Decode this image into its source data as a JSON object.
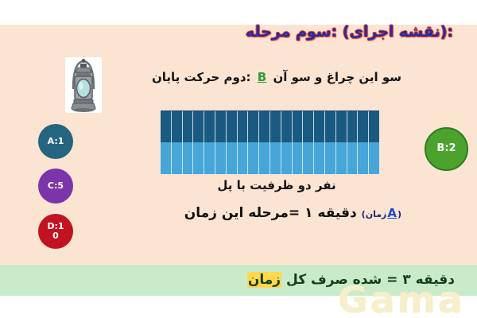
{
  "slide": {
    "title": "مرحله سوم: (اجرای نقشه):",
    "move_line": {
      "prefix": "پایان حرکت دوم:",
      "actor": "B",
      "suffix": "آن سو و چراغ این سو"
    },
    "bridge_caption": "پل با ظرفیت دو نفر",
    "stage_time": {
      "main": "زمان این مرحله= ۱ دقیقه",
      "paren_word": "(زمان",
      "actor": "A",
      "close_paren": ")"
    },
    "total_time": {
      "highlight_word": "زمان",
      "rest": "کل صرف شده = ۳ دقیقه"
    },
    "watermark": "Gama"
  },
  "actors": {
    "left": [
      {
        "label": "A:1",
        "color": "#26657f"
      },
      {
        "label": "C:5",
        "color": "#7c35a8"
      },
      {
        "label": "D:10",
        "color": "#c11320"
      }
    ],
    "right": [
      {
        "label": "B:2",
        "color": "#4ba32e",
        "border_color": "#2e7d20"
      }
    ]
  },
  "bridge": {
    "segments": 20,
    "top_color": "#1a5a80",
    "bottom_color": "#46a6d8",
    "divider_color": "#dff0fa"
  },
  "icons": {
    "lantern": "lantern-icon"
  },
  "colors": {
    "background_main": "#fbe4d2",
    "title_text": "#2a2a9c",
    "title_outline": "#e04a38",
    "actor_b_inline_text": "#2f9e32",
    "actor_a_inline_text": "#1d49cc",
    "total_bar_background": "#c9ebc9",
    "total_bar_text": "#16401a",
    "highlight": "#ffd84d"
  }
}
